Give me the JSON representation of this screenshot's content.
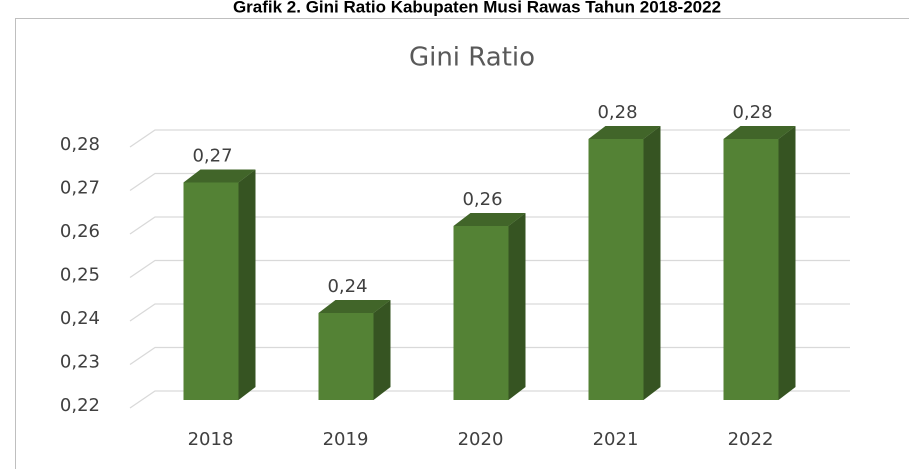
{
  "heading": "Grafik 2. Gini Ratio Kabupaten Musi Rawas Tahun 2018-2022",
  "chart_data": {
    "type": "bar",
    "title": "Gini Ratio",
    "categories": [
      "2018",
      "2019",
      "2020",
      "2021",
      "2022"
    ],
    "values": [
      0.27,
      0.24,
      0.26,
      0.28,
      0.28
    ],
    "value_labels": [
      "0,27",
      "0,24",
      "0,26",
      "0,28",
      "0,28"
    ],
    "color": "#548235",
    "ylim": [
      0.22,
      0.28
    ],
    "yticks": [
      {
        "value": 0.22,
        "label": "0,22"
      },
      {
        "value": 0.23,
        "label": "0,23"
      },
      {
        "value": 0.24,
        "label": "0,24"
      },
      {
        "value": 0.25,
        "label": "0,25"
      },
      {
        "value": 0.26,
        "label": "0,26"
      },
      {
        "value": 0.27,
        "label": "0,27"
      },
      {
        "value": 0.28,
        "label": "0,28"
      }
    ],
    "grid": true
  }
}
